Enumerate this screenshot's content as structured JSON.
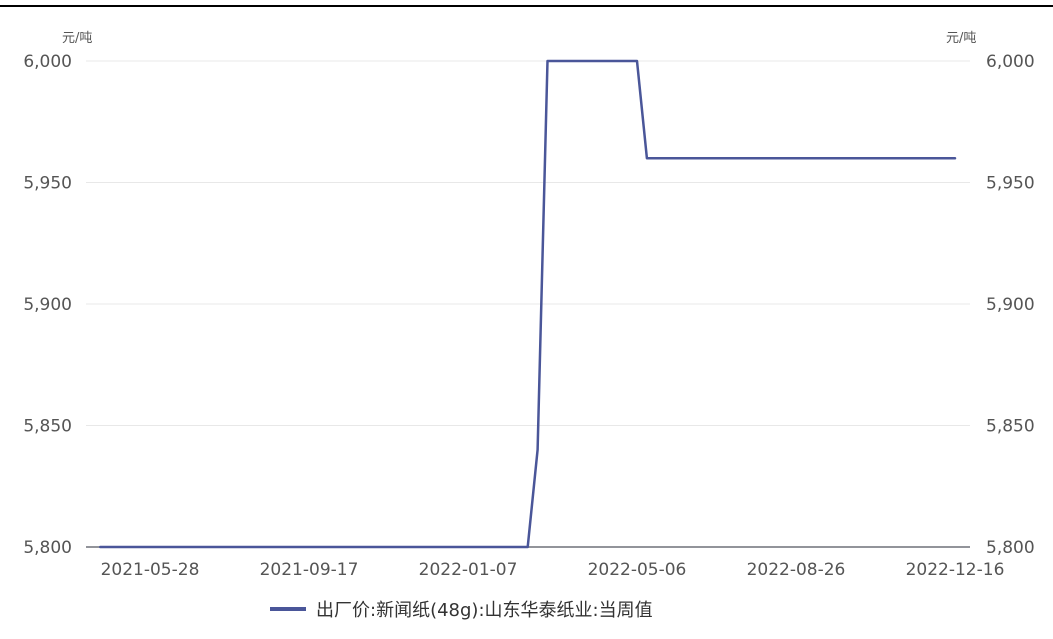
{
  "chart_data": {
    "type": "line",
    "title": "",
    "xlabel": "",
    "ylabel": "",
    "unit_left": "元/吨",
    "unit_right": "元/吨",
    "ylim": [
      5800,
      6000
    ],
    "y_ticks": [
      "5,800",
      "5,850",
      "5,900",
      "5,950",
      "6,000"
    ],
    "y_tick_values": [
      5800,
      5850,
      5900,
      5950,
      6000
    ],
    "x_ticks": [
      "2021-05-28",
      "2021-09-17",
      "2022-01-07",
      "2022-05-06",
      "2022-08-26",
      "2022-12-16"
    ],
    "x_range": [
      "2021-04-23",
      "2022-12-16"
    ],
    "grid": true,
    "legend_position": "bottom",
    "series": [
      {
        "name": "出厂价:新闻纸(48g):山东华泰纸业:当周值",
        "color": "#4a5699",
        "points": [
          [
            "2021-04-23",
            5800
          ],
          [
            "2022-02-18",
            5800
          ],
          [
            "2022-02-25",
            5840
          ],
          [
            "2022-03-04",
            6000
          ],
          [
            "2022-05-06",
            6000
          ],
          [
            "2022-05-13",
            5960
          ],
          [
            "2022-12-16",
            5960
          ]
        ]
      }
    ]
  }
}
